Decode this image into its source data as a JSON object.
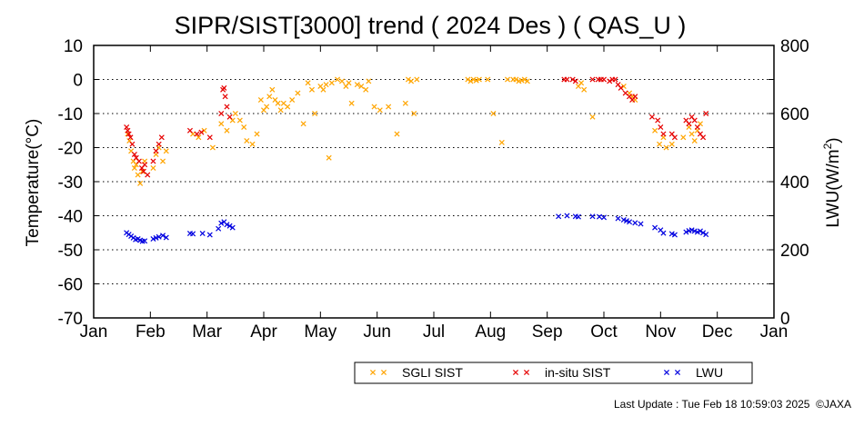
{
  "chart_data": {
    "type": "scatter",
    "title": "SIPR/SIST[3000] trend ( 2024 Des ) ( QAS_U )",
    "ylabel": "Temperature(°C)",
    "y2label_prefix": "LWU(W/m",
    "y2label_sup": "2",
    "y2label_suffix": ")",
    "ylim": [
      -70,
      10
    ],
    "y2lim": [
      0,
      800
    ],
    "yticks": [
      10,
      0,
      -10,
      -20,
      -30,
      -40,
      -50,
      -60,
      -70
    ],
    "y2ticks": [
      800,
      600,
      400,
      200,
      0
    ],
    "xlim": [
      0,
      12
    ],
    "xtick_labels": [
      "Jan",
      "Feb",
      "Mar",
      "Apr",
      "May",
      "Jun",
      "Jul",
      "Aug",
      "Sep",
      "Oct",
      "Nov",
      "Dec",
      "Jan"
    ],
    "grid": "horizontal dotted",
    "legend_position": "bottom-right",
    "series": [
      {
        "name": "SGLI SIST",
        "color": "#ffa500",
        "axis": "temperature",
        "points": [
          [
            0.6,
            -16
          ],
          [
            0.63,
            -18
          ],
          [
            0.66,
            -21
          ],
          [
            0.7,
            -24
          ],
          [
            0.72,
            -26
          ],
          [
            0.75,
            -25
          ],
          [
            0.78,
            -28
          ],
          [
            0.82,
            -30.5
          ],
          [
            0.86,
            -27
          ],
          [
            0.9,
            -24
          ],
          [
            1.05,
            -26
          ],
          [
            1.1,
            -22
          ],
          [
            1.15,
            -20
          ],
          [
            1.22,
            -24
          ],
          [
            1.28,
            -21
          ],
          [
            1.75,
            -16
          ],
          [
            1.85,
            -17
          ],
          [
            1.95,
            -15
          ],
          [
            2.1,
            -20
          ],
          [
            2.25,
            -13
          ],
          [
            2.35,
            -15
          ],
          [
            2.45,
            -12
          ],
          [
            2.5,
            -10
          ],
          [
            2.58,
            -12
          ],
          [
            2.65,
            -14
          ],
          [
            2.7,
            -18
          ],
          [
            2.8,
            -19
          ],
          [
            2.88,
            -16
          ],
          [
            2.95,
            -6
          ],
          [
            3.0,
            -9
          ],
          [
            3.05,
            -8
          ],
          [
            3.1,
            -5
          ],
          [
            3.15,
            -3
          ],
          [
            3.2,
            -6
          ],
          [
            3.25,
            -7
          ],
          [
            3.3,
            -9
          ],
          [
            3.35,
            -7
          ],
          [
            3.42,
            -8
          ],
          [
            3.5,
            -6
          ],
          [
            3.6,
            -4
          ],
          [
            3.7,
            -13
          ],
          [
            3.78,
            -1
          ],
          [
            3.85,
            -3
          ],
          [
            3.9,
            -10
          ],
          [
            4.0,
            -2
          ],
          [
            4.05,
            -3
          ],
          [
            4.1,
            -1.5
          ],
          [
            4.15,
            -23
          ],
          [
            4.2,
            -1
          ],
          [
            4.3,
            0
          ],
          [
            4.38,
            -0.5
          ],
          [
            4.45,
            -2
          ],
          [
            4.5,
            -1
          ],
          [
            4.55,
            -7
          ],
          [
            4.65,
            -1.5
          ],
          [
            4.72,
            -2
          ],
          [
            4.8,
            -3
          ],
          [
            4.85,
            -0.5
          ],
          [
            4.95,
            -8
          ],
          [
            5.05,
            -9
          ],
          [
            5.2,
            -8
          ],
          [
            5.35,
            -16
          ],
          [
            5.5,
            -7
          ],
          [
            5.55,
            0
          ],
          [
            5.6,
            -0.5
          ],
          [
            5.65,
            -10
          ],
          [
            5.7,
            0
          ],
          [
            6.6,
            0
          ],
          [
            6.65,
            -0.5
          ],
          [
            6.7,
            0
          ],
          [
            6.75,
            -0.3
          ],
          [
            6.8,
            0
          ],
          [
            6.95,
            0
          ],
          [
            7.05,
            -10
          ],
          [
            7.2,
            -18.5
          ],
          [
            7.3,
            0
          ],
          [
            7.4,
            0
          ],
          [
            7.45,
            0
          ],
          [
            7.5,
            -0.5
          ],
          [
            7.55,
            -0.3
          ],
          [
            7.6,
            0
          ],
          [
            7.65,
            -0.5
          ],
          [
            8.55,
            -2
          ],
          [
            8.6,
            -1
          ],
          [
            8.65,
            -3
          ],
          [
            8.8,
            -11
          ],
          [
            9.35,
            -2
          ],
          [
            9.45,
            -4
          ],
          [
            9.5,
            -5
          ],
          [
            9.55,
            -6
          ],
          [
            9.9,
            -15
          ],
          [
            9.98,
            -19
          ],
          [
            10.05,
            -17
          ],
          [
            10.1,
            -20
          ],
          [
            10.2,
            -19
          ],
          [
            10.4,
            -17
          ],
          [
            10.5,
            -14
          ],
          [
            10.55,
            -16
          ],
          [
            10.6,
            -18
          ],
          [
            10.65,
            -15
          ],
          [
            10.7,
            -13
          ]
        ]
      },
      {
        "name": "in-situ SIST",
        "color": "#e60000",
        "axis": "temperature",
        "points": [
          [
            0.58,
            -14
          ],
          [
            0.6,
            -15
          ],
          [
            0.62,
            -16
          ],
          [
            0.65,
            -17
          ],
          [
            0.68,
            -19
          ],
          [
            0.72,
            -22
          ],
          [
            0.75,
            -23
          ],
          [
            0.8,
            -24
          ],
          [
            0.85,
            -26
          ],
          [
            0.88,
            -27
          ],
          [
            0.9,
            -25
          ],
          [
            0.95,
            -28
          ],
          [
            1.05,
            -24
          ],
          [
            1.1,
            -21
          ],
          [
            1.15,
            -19
          ],
          [
            1.2,
            -17
          ],
          [
            1.7,
            -15
          ],
          [
            1.82,
            -16
          ],
          [
            1.9,
            -15.5
          ],
          [
            2.05,
            -17
          ],
          [
            2.25,
            -10
          ],
          [
            2.28,
            -3
          ],
          [
            2.3,
            -2.5
          ],
          [
            2.32,
            -5
          ],
          [
            2.35,
            -8
          ],
          [
            2.4,
            -11
          ],
          [
            8.3,
            0
          ],
          [
            8.35,
            0
          ],
          [
            8.45,
            0
          ],
          [
            8.5,
            -0.5
          ],
          [
            8.8,
            0
          ],
          [
            8.9,
            0
          ],
          [
            8.95,
            0
          ],
          [
            9.0,
            0
          ],
          [
            9.1,
            -0.5
          ],
          [
            9.15,
            0
          ],
          [
            9.2,
            0
          ],
          [
            9.25,
            -1.5
          ],
          [
            9.3,
            -2.5
          ],
          [
            9.38,
            -4
          ],
          [
            9.45,
            -5
          ],
          [
            9.5,
            -6
          ],
          [
            9.55,
            -5
          ],
          [
            9.85,
            -11
          ],
          [
            9.95,
            -12
          ],
          [
            10.0,
            -14
          ],
          [
            10.05,
            -16
          ],
          [
            10.2,
            -16
          ],
          [
            10.25,
            -17
          ],
          [
            10.45,
            -12
          ],
          [
            10.5,
            -13
          ],
          [
            10.55,
            -11
          ],
          [
            10.6,
            -12
          ],
          [
            10.65,
            -14
          ],
          [
            10.7,
            -16
          ],
          [
            10.75,
            -17
          ],
          [
            10.8,
            -10
          ]
        ]
      },
      {
        "name": "LWU",
        "color": "#0000e0",
        "axis": "LWU",
        "points": [
          [
            0.58,
            250
          ],
          [
            0.62,
            245
          ],
          [
            0.66,
            240
          ],
          [
            0.7,
            235
          ],
          [
            0.74,
            230
          ],
          [
            0.78,
            232
          ],
          [
            0.82,
            228
          ],
          [
            0.86,
            225
          ],
          [
            0.9,
            226
          ],
          [
            1.05,
            232
          ],
          [
            1.1,
            235
          ],
          [
            1.15,
            238
          ],
          [
            1.22,
            242
          ],
          [
            1.28,
            236
          ],
          [
            1.7,
            248
          ],
          [
            1.75,
            247
          ],
          [
            1.92,
            248
          ],
          [
            2.05,
            244
          ],
          [
            2.2,
            262
          ],
          [
            2.25,
            278
          ],
          [
            2.3,
            282
          ],
          [
            2.35,
            274
          ],
          [
            2.4,
            270
          ],
          [
            2.45,
            265
          ],
          [
            8.2,
            298
          ],
          [
            8.35,
            300
          ],
          [
            8.5,
            298
          ],
          [
            8.55,
            297
          ],
          [
            8.8,
            298
          ],
          [
            8.92,
            297
          ],
          [
            9.0,
            295
          ],
          [
            9.25,
            292
          ],
          [
            9.35,
            288
          ],
          [
            9.4,
            285
          ],
          [
            9.45,
            282
          ],
          [
            9.55,
            279
          ],
          [
            9.65,
            276
          ],
          [
            9.9,
            265
          ],
          [
            10.0,
            258
          ],
          [
            10.05,
            249
          ],
          [
            10.2,
            247
          ],
          [
            10.25,
            244
          ],
          [
            10.45,
            252
          ],
          [
            10.5,
            256
          ],
          [
            10.55,
            258
          ],
          [
            10.6,
            255
          ],
          [
            10.65,
            252
          ],
          [
            10.7,
            255
          ],
          [
            10.75,
            250
          ],
          [
            10.8,
            245
          ]
        ]
      }
    ]
  },
  "footer": {
    "last_update": "Last Update : Tue Feb 18 10:59:03 2025",
    "copyright": "©JAXA"
  }
}
